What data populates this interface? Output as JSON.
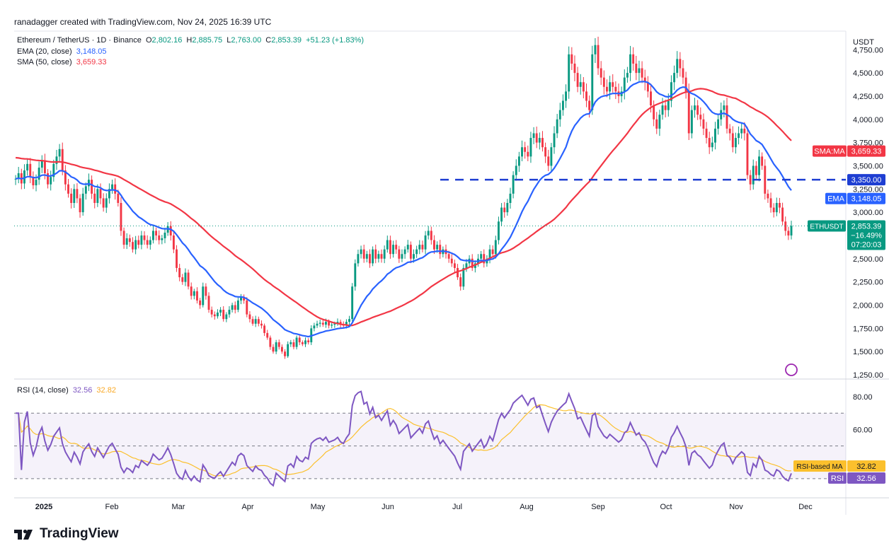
{
  "header": "ranadagger created with TradingView.com, Nov 24, 2025 16:39 UTC",
  "legend": {
    "symbol": "Ethereum / TetherUS · 1D · Binance",
    "o_label": "O",
    "o": "2,802.16",
    "h_label": "H",
    "h": "2,885.75",
    "l_label": "L",
    "l": "2,763.00",
    "c_label": "C",
    "c": "2,853.39",
    "change": "+51.23 (+1.83%)",
    "ema_label": "EMA (20, close)",
    "ema_value": "3,148.05",
    "sma_label": "SMA (50, close)",
    "sma_value": "3,659.33"
  },
  "rsi_legend": {
    "label": "RSI (14, close)",
    "rsi": "32.56",
    "ma": "32.82"
  },
  "price_axis": {
    "currency": "USDT",
    "ticks": [
      "4,750.00",
      "4,500.00",
      "4,250.00",
      "4,000.00",
      "3,750.00",
      "3,500.00",
      "3,250.00",
      "3,000.00",
      "2,750.00",
      "2,500.00",
      "2,250.00",
      "2,000.00",
      "1,750.00",
      "1,500.00",
      "1,250.00"
    ]
  },
  "rsi_axis": {
    "ticks": [
      "80.00",
      "60.00"
    ]
  },
  "badges": {
    "sma": {
      "label": "SMA:MA",
      "value": "3,659.33",
      "color": "#f23645"
    },
    "level": {
      "value": "3,350.00",
      "color": "#1e3ed2"
    },
    "ema": {
      "label": "EMA",
      "value": "3,148.05",
      "color": "#2962ff"
    },
    "price": {
      "label": "ETHUSDT",
      "value": "2,853.39",
      "change": "−16.49%",
      "time": "07:20:03",
      "color": "#089981"
    },
    "rsi_ma": {
      "label": "RSI-based MA",
      "value": "32.82",
      "color": "#fbc02d"
    },
    "rsi": {
      "label": "RSI",
      "value": "32.56",
      "color": "#7e57c2"
    }
  },
  "time_axis": [
    "2025",
    "Feb",
    "Mar",
    "Apr",
    "May",
    "Jun",
    "Jul",
    "Aug",
    "Sep",
    "Oct",
    "Nov",
    "Dec"
  ],
  "footer": "TradingView",
  "chart_data": {
    "type": "candlestick",
    "title": "Ethereum / TetherUS · 1D · Binance",
    "ylim": [
      1250,
      4950
    ],
    "rsi_ylim": [
      20,
      90
    ],
    "rsi_band": [
      30,
      70
    ],
    "resistance_level": 3350,
    "colors": {
      "up": "#089981",
      "down": "#f23645",
      "ema": "#2962ff",
      "sma": "#f23645",
      "rsi": "#7e57c2",
      "rsi_ma": "#fbc02d"
    },
    "close": [
      3360,
      3420,
      3310,
      3450,
      3520,
      3380,
      3290,
      3350,
      3480,
      3560,
      3420,
      3300,
      3380,
      3520,
      3600,
      3680,
      3450,
      3300,
      3200,
      3100,
      3250,
      3150,
      3000,
      3200,
      3280,
      3350,
      3200,
      3100,
      3250,
      3150,
      3050,
      3150,
      3250,
      3300,
      3200,
      3100,
      2800,
      2650,
      2720,
      2680,
      2600,
      2700,
      2650,
      2750,
      2700,
      2650,
      2700,
      2800,
      2750,
      2700,
      2720,
      2780,
      2850,
      2750,
      2600,
      2400,
      2300,
      2250,
      2350,
      2200,
      2100,
      2150,
      2050,
      2000,
      2200,
      2100,
      1950,
      1900,
      1880,
      1920,
      1950,
      1850,
      1900,
      1950,
      2000,
      1950,
      2050,
      2080,
      2050,
      1900,
      1850,
      1800,
      1850,
      1800,
      1780,
      1700,
      1650,
      1550,
      1500,
      1600,
      1550,
      1500,
      1450,
      1580,
      1600,
      1550,
      1650,
      1600,
      1580,
      1620,
      1600,
      1750,
      1780,
      1800,
      1810,
      1790,
      1820,
      1780,
      1790,
      1800,
      1820,
      1790,
      1780,
      1820,
      1850,
      2200,
      2450,
      2550,
      2600,
      2500,
      2550,
      2450,
      2600,
      2500,
      2550,
      2500,
      2600,
      2700,
      2550,
      2650,
      2600,
      2500,
      2550,
      2600,
      2650,
      2500,
      2550,
      2600,
      2650,
      2600,
      2750,
      2800,
      2700,
      2600,
      2650,
      2550,
      2600,
      2550,
      2500,
      2450,
      2400,
      2300,
      2200,
      2400,
      2450,
      2500,
      2400,
      2450,
      2500,
      2550,
      2450,
      2500,
      2600,
      2550,
      2700,
      2900,
      3050,
      3000,
      3100,
      3200,
      3400,
      3500,
      3600,
      3700,
      3650,
      3600,
      3800,
      3850,
      3750,
      3800,
      3700,
      3600,
      3500,
      3700,
      3850,
      4000,
      4100,
      4200,
      4300,
      4700,
      4600,
      4500,
      4350,
      4400,
      4300,
      4200,
      4100,
      4700,
      4800,
      4550,
      4450,
      4350,
      4300,
      4400,
      4350,
      4300,
      4250,
      4300,
      4450,
      4500,
      4700,
      4600,
      4500,
      4550,
      4450,
      4400,
      4300,
      4150,
      4000,
      3900,
      4050,
      4150,
      4100,
      4200,
      4400,
      4500,
      4650,
      4550,
      4450,
      4300,
      3850,
      4100,
      4150,
      4050,
      4000,
      3900,
      3800,
      3700,
      3750,
      3900,
      4000,
      4100,
      4150,
      3900,
      3850,
      3700,
      3800,
      3850,
      3900,
      3850,
      3400,
      3300,
      3500,
      3400,
      3600,
      3500,
      3200,
      3150,
      3050,
      3000,
      3100,
      3050,
      2900,
      2800,
      2750,
      2853
    ]
  }
}
